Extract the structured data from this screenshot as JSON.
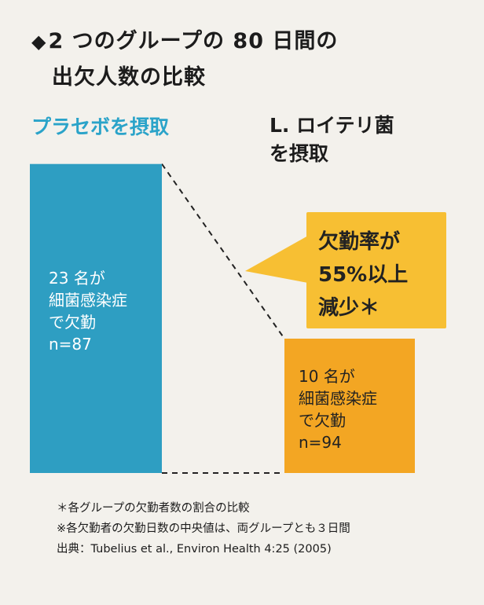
{
  "title": {
    "line1": "2 つのグループの 80 日間の",
    "line2": "出欠人数の比較"
  },
  "groups": {
    "placebo_label": "プラセボを摂取",
    "reuteri_label_line1": "L. ロイテリ菌",
    "reuteri_label_line2": "を摂取"
  },
  "chart_data": {
    "type": "bar",
    "categories": [
      "プラセボを摂取",
      "L. ロイテリ菌を摂取"
    ],
    "values": [
      23,
      10
    ],
    "sample_sizes": [
      87,
      94
    ],
    "bar_labels": [
      [
        "23 名が",
        "細菌感染症",
        "で欠勤",
        "n=87"
      ],
      [
        "10 名が",
        "細菌感染症",
        "で欠勤",
        "n=94"
      ]
    ],
    "annotation": [
      "欠勤率が",
      "55%以上",
      "減少＊"
    ],
    "colors": {
      "placebo": "#2e9ec2",
      "reuteri": "#f3a623",
      "callout": "#f7bf33"
    }
  },
  "notes": {
    "note1": "＊各グループの欠勤者数の割合の比較",
    "note2": "※各欠勤者の欠勤日数の中央値は、両グループとも３日間",
    "source": "出典：Tubelius et al., Environ Health 4:25 (2005)"
  }
}
